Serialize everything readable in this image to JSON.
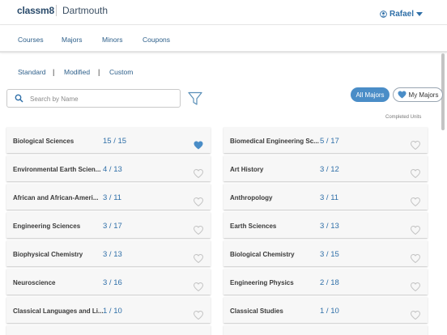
{
  "header": {
    "logo_main": "classm",
    "logo_accent": "8",
    "school": "Dartmouth",
    "user_name": "Rafael",
    "user_icon": "user-circle-icon",
    "dropdown_icon": "caret-down-icon"
  },
  "nav": {
    "items": [
      {
        "label": "Courses"
      },
      {
        "label": "Majors"
      },
      {
        "label": "Minors"
      },
      {
        "label": "Coupons"
      }
    ]
  },
  "filter_tabs": {
    "items": [
      {
        "label": "Standard"
      },
      {
        "label": "Modified"
      },
      {
        "label": "Custom"
      }
    ],
    "separator": "|"
  },
  "search": {
    "placeholder": "Search by Name",
    "value": "",
    "icon": "search-icon",
    "filter_icon": "funnel-icon"
  },
  "toggle": {
    "all_label": "All Majors",
    "my_label": "My Majors",
    "selected": "all"
  },
  "completed_label": "Completed Units",
  "colors": {
    "accent": "#4a8dc7",
    "link": "#2d5f8a",
    "count": "#2f6fa8",
    "card_bg": "#f7f7f7"
  },
  "majors": [
    {
      "name": "Biological Sciences",
      "count": "15 / 15",
      "favorite": true
    },
    {
      "name": "Biomedical Engineering Sc...",
      "count": "5 / 17",
      "favorite": false
    },
    {
      "name": "Environmental Earth Scien...",
      "count": "4 / 13",
      "favorite": false
    },
    {
      "name": "Art History",
      "count": "3 / 12",
      "favorite": false
    },
    {
      "name": "African and African-Ameri...",
      "count": "3 / 11",
      "favorite": false
    },
    {
      "name": "Anthropology",
      "count": "3 / 11",
      "favorite": false
    },
    {
      "name": "Engineering Sciences",
      "count": "3 / 17",
      "favorite": false
    },
    {
      "name": "Earth Sciences",
      "count": "3 / 13",
      "favorite": false
    },
    {
      "name": "Biophysical Chemistry",
      "count": "3 / 13",
      "favorite": false
    },
    {
      "name": "Biological Chemistry",
      "count": "3 / 15",
      "favorite": false
    },
    {
      "name": "Neuroscience",
      "count": "3 / 16",
      "favorite": false
    },
    {
      "name": "Engineering Physics",
      "count": "2 / 18",
      "favorite": false
    },
    {
      "name": "Classical Languages and Li...",
      "count": "1 / 10",
      "favorite": false
    },
    {
      "name": "Classical Studies",
      "count": "1 / 10",
      "favorite": false
    },
    {
      "name": "",
      "count": "",
      "favorite": false
    },
    {
      "name": "",
      "count": "",
      "favorite": false
    }
  ]
}
